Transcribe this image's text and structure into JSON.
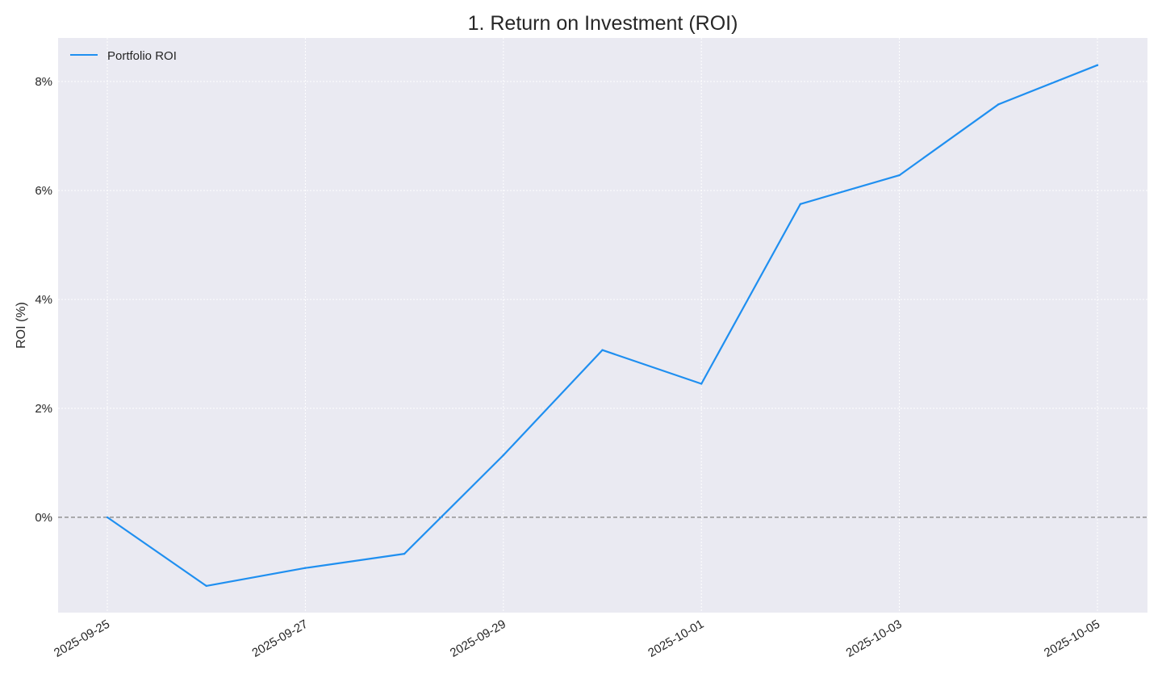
{
  "chart_data": {
    "type": "line",
    "title": "1. Return on Investment (ROI)",
    "xlabel": "",
    "ylabel": "ROI (%)",
    "x": [
      "2025-09-25",
      "2025-09-26",
      "2025-09-27",
      "2025-09-28",
      "2025-09-29",
      "2025-09-30",
      "2025-10-01",
      "2025-10-02",
      "2025-10-03",
      "2025-10-04",
      "2025-10-05"
    ],
    "series": [
      {
        "name": "Portfolio ROI",
        "color": "#1f8ff0",
        "values": [
          0.0,
          -1.26,
          -0.93,
          -0.67,
          1.14,
          3.07,
          2.45,
          5.75,
          6.28,
          7.58,
          8.3
        ]
      }
    ],
    "xlim": [
      "2025-09-24",
      "2025-10-05"
    ],
    "ylim": [
      -1.75,
      8.8
    ],
    "xticks": [
      "2025-09-25",
      "2025-09-27",
      "2025-09-29",
      "2025-10-01",
      "2025-10-03",
      "2025-10-05"
    ],
    "yticks": [
      0,
      2,
      4,
      6,
      8
    ],
    "ytick_labels": [
      "0%",
      "2%",
      "4%",
      "6%",
      "8%"
    ],
    "reference_line": {
      "y": 0,
      "style": "dashed",
      "color": "#808080"
    },
    "grid": true,
    "grid_style": "dotted",
    "background_color": "#eaeaf2",
    "legend_position": "top-left"
  }
}
